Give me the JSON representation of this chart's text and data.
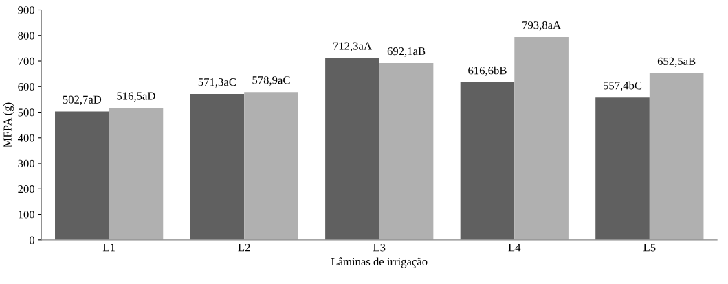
{
  "chart_data": {
    "type": "bar",
    "xlabel": "Lâminas de irrigação",
    "ylabel": "MFPA (g)",
    "categories": [
      "L1",
      "L2",
      "L3",
      "L4",
      "L5"
    ],
    "series": [
      {
        "color": "#606060",
        "values": [
          502.7,
          571.3,
          712.3,
          616.6,
          557.4
        ],
        "value_labels": [
          "502,7aD",
          "571,3aC",
          "712,3aA",
          "616,6bB",
          "557,4bC"
        ]
      },
      {
        "color": "#b0b0b0",
        "values": [
          516.5,
          578.9,
          692.1,
          793.8,
          652.5
        ],
        "value_labels": [
          "516,5aD",
          "578,9aC",
          "692,1aB",
          "793,8aA",
          "652,5aB"
        ]
      }
    ],
    "ylim": [
      0,
      900
    ],
    "yticks": [
      0,
      100,
      200,
      300,
      400,
      500,
      600,
      700,
      800,
      900
    ],
    "grid": false,
    "legend": false
  }
}
